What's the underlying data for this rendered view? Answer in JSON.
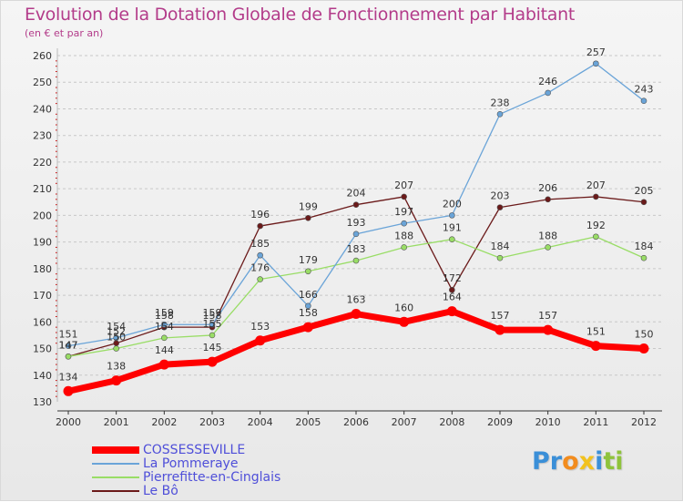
{
  "title": "Evolution de la Dotation Globale de Fonctionnement par Habitant",
  "subtitle": "(en € et par an)",
  "logo": {
    "letters": [
      "P",
      "r",
      "o",
      "x",
      "i",
      "t",
      "i"
    ],
    "colors": [
      "#3a8fd8",
      "#3a8fd8",
      "#f28c1e",
      "#f2c21e",
      "#3a8fd8",
      "#8fc33c",
      "#8fc33c"
    ]
  },
  "chart_data": {
    "type": "line",
    "title": "Evolution de la Dotation Globale de Fonctionnement par Habitant",
    "x": [
      "2000",
      "2001",
      "2002",
      "2003",
      "2004",
      "2005",
      "2006",
      "2007",
      "2008",
      "2009",
      "2010",
      "2011",
      "2012"
    ],
    "ylim": [
      130,
      260
    ],
    "yticks": [
      130,
      140,
      150,
      160,
      170,
      180,
      190,
      200,
      210,
      220,
      230,
      240,
      250,
      260
    ],
    "grid": "horizontal-dashed",
    "legend_position": "bottom-left",
    "series": [
      {
        "name": "COSSESSEVILLE",
        "color": "#ff0000",
        "values": [
          134,
          138,
          144,
          145,
          153,
          158,
          163,
          160,
          164,
          157,
          157,
          151,
          150
        ]
      },
      {
        "name": "La Pommeraye",
        "color": "#6aa4d8",
        "values": [
          151,
          154,
          159,
          159,
          185,
          166,
          193,
          197,
          200,
          238,
          246,
          257,
          243
        ]
      },
      {
        "name": "Pierrefitte-en-Cinglais",
        "color": "#99dd66",
        "values": [
          147,
          150,
          154,
          155,
          176,
          179,
          183,
          188,
          191,
          184,
          188,
          192,
          184
        ]
      },
      {
        "name": "Le Bô",
        "color": "#6b1a1a",
        "values": [
          147,
          152,
          158,
          158,
          196,
          199,
          204,
          207,
          172,
          203,
          206,
          207,
          205
        ]
      }
    ]
  }
}
